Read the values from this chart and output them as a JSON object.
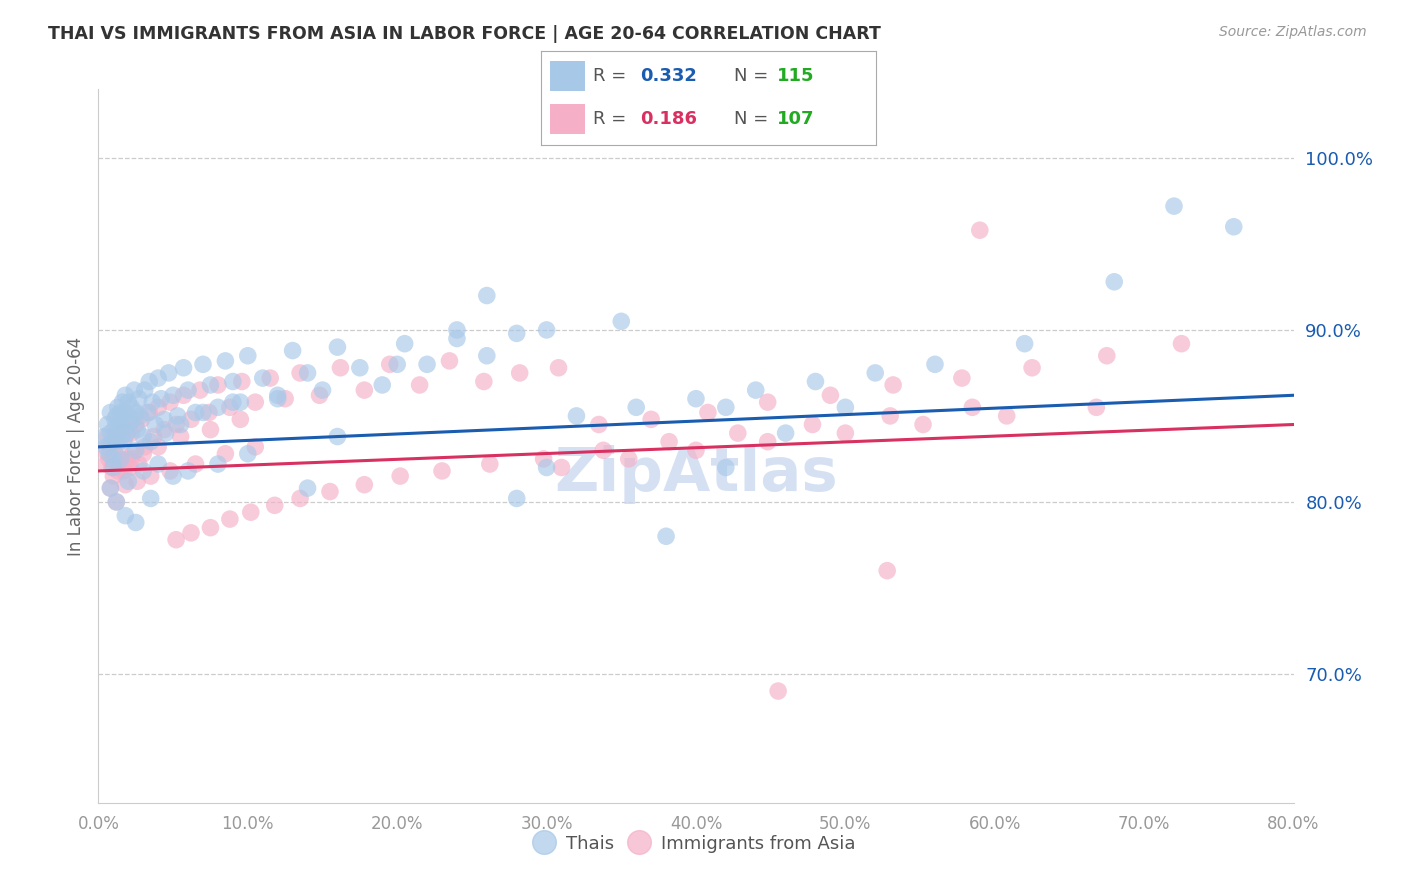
{
  "title": "THAI VS IMMIGRANTS FROM ASIA IN LABOR FORCE | AGE 20-64 CORRELATION CHART",
  "source": "Source: ZipAtlas.com",
  "ylabel": "In Labor Force | Age 20-64",
  "xmin": 0.0,
  "xmax": 0.8,
  "ymin": 0.625,
  "ymax": 1.04,
  "blue_R": 0.332,
  "blue_N": 115,
  "pink_R": 0.186,
  "pink_N": 107,
  "blue_color": "#a8c8e8",
  "pink_color": "#f5b0c8",
  "blue_line_color": "#1a5cb0",
  "pink_line_color": "#d83060",
  "legend_N_color": "#22aa22",
  "watermark_color": "#c8d8ef",
  "legend_label_blue": "Thais",
  "legend_label_pink": "Immigrants from Asia",
  "blue_line_y0": 0.832,
  "blue_line_y1": 0.862,
  "pink_line_y0": 0.818,
  "pink_line_y1": 0.845,
  "blue_x": [
    0.004,
    0.005,
    0.006,
    0.007,
    0.008,
    0.008,
    0.009,
    0.01,
    0.01,
    0.011,
    0.011,
    0.012,
    0.012,
    0.013,
    0.013,
    0.014,
    0.015,
    0.015,
    0.016,
    0.016,
    0.017,
    0.017,
    0.018,
    0.018,
    0.019,
    0.02,
    0.021,
    0.022,
    0.023,
    0.024,
    0.025,
    0.026,
    0.027,
    0.028,
    0.03,
    0.031,
    0.033,
    0.034,
    0.036,
    0.038,
    0.04,
    0.042,
    0.044,
    0.047,
    0.05,
    0.053,
    0.057,
    0.06,
    0.065,
    0.07,
    0.075,
    0.08,
    0.085,
    0.09,
    0.095,
    0.1,
    0.11,
    0.12,
    0.13,
    0.14,
    0.15,
    0.16,
    0.175,
    0.19,
    0.205,
    0.22,
    0.24,
    0.26,
    0.28,
    0.3,
    0.01,
    0.015,
    0.02,
    0.025,
    0.03,
    0.035,
    0.04,
    0.045,
    0.05,
    0.055,
    0.06,
    0.07,
    0.08,
    0.09,
    0.1,
    0.12,
    0.008,
    0.012,
    0.018,
    0.025,
    0.035,
    0.32,
    0.36,
    0.4,
    0.44,
    0.48,
    0.52,
    0.56,
    0.62,
    0.68,
    0.72,
    0.76,
    0.3,
    0.35,
    0.42,
    0.38,
    0.46,
    0.5,
    0.24,
    0.2,
    0.16,
    0.14,
    0.26,
    0.28,
    0.42
  ],
  "blue_y": [
    0.838,
    0.832,
    0.845,
    0.828,
    0.84,
    0.852,
    0.835,
    0.838,
    0.825,
    0.843,
    0.848,
    0.835,
    0.85,
    0.84,
    0.855,
    0.845,
    0.838,
    0.852,
    0.842,
    0.858,
    0.848,
    0.835,
    0.862,
    0.852,
    0.84,
    0.858,
    0.845,
    0.855,
    0.848,
    0.865,
    0.852,
    0.842,
    0.86,
    0.85,
    0.838,
    0.865,
    0.852,
    0.87,
    0.858,
    0.845,
    0.872,
    0.86,
    0.848,
    0.875,
    0.862,
    0.85,
    0.878,
    0.865,
    0.852,
    0.88,
    0.868,
    0.855,
    0.882,
    0.87,
    0.858,
    0.885,
    0.872,
    0.86,
    0.888,
    0.875,
    0.865,
    0.89,
    0.878,
    0.868,
    0.892,
    0.88,
    0.895,
    0.885,
    0.898,
    0.9,
    0.82,
    0.825,
    0.812,
    0.83,
    0.818,
    0.835,
    0.822,
    0.84,
    0.815,
    0.845,
    0.818,
    0.852,
    0.822,
    0.858,
    0.828,
    0.862,
    0.808,
    0.8,
    0.792,
    0.788,
    0.802,
    0.85,
    0.855,
    0.86,
    0.865,
    0.87,
    0.875,
    0.88,
    0.892,
    0.928,
    0.972,
    0.96,
    0.82,
    0.905,
    0.855,
    0.78,
    0.84,
    0.855,
    0.9,
    0.88,
    0.838,
    0.808,
    0.92,
    0.802,
    0.82
  ],
  "pink_x": [
    0.004,
    0.005,
    0.006,
    0.007,
    0.008,
    0.009,
    0.01,
    0.011,
    0.012,
    0.013,
    0.014,
    0.015,
    0.016,
    0.017,
    0.018,
    0.019,
    0.02,
    0.021,
    0.022,
    0.023,
    0.025,
    0.027,
    0.029,
    0.031,
    0.034,
    0.037,
    0.04,
    0.044,
    0.048,
    0.052,
    0.057,
    0.062,
    0.068,
    0.074,
    0.08,
    0.088,
    0.096,
    0.105,
    0.115,
    0.125,
    0.135,
    0.148,
    0.162,
    0.178,
    0.195,
    0.215,
    0.235,
    0.258,
    0.282,
    0.308,
    0.008,
    0.01,
    0.012,
    0.015,
    0.018,
    0.022,
    0.026,
    0.03,
    0.035,
    0.04,
    0.048,
    0.055,
    0.065,
    0.075,
    0.085,
    0.095,
    0.105,
    0.335,
    0.37,
    0.408,
    0.448,
    0.49,
    0.532,
    0.578,
    0.625,
    0.675,
    0.725,
    0.31,
    0.355,
    0.4,
    0.448,
    0.5,
    0.552,
    0.608,
    0.668,
    0.052,
    0.062,
    0.075,
    0.088,
    0.102,
    0.118,
    0.135,
    0.155,
    0.178,
    0.202,
    0.23,
    0.262,
    0.298,
    0.338,
    0.382,
    0.428,
    0.478,
    0.53,
    0.585,
    0.455,
    0.528,
    0.59
  ],
  "pink_y": [
    0.83,
    0.822,
    0.838,
    0.825,
    0.832,
    0.82,
    0.835,
    0.828,
    0.84,
    0.818,
    0.835,
    0.825,
    0.84,
    0.818,
    0.838,
    0.825,
    0.842,
    0.82,
    0.84,
    0.828,
    0.845,
    0.822,
    0.848,
    0.832,
    0.852,
    0.838,
    0.855,
    0.842,
    0.858,
    0.845,
    0.862,
    0.848,
    0.865,
    0.852,
    0.868,
    0.855,
    0.87,
    0.858,
    0.872,
    0.86,
    0.875,
    0.862,
    0.878,
    0.865,
    0.88,
    0.868,
    0.882,
    0.87,
    0.875,
    0.878,
    0.808,
    0.815,
    0.8,
    0.82,
    0.81,
    0.825,
    0.812,
    0.828,
    0.815,
    0.832,
    0.818,
    0.838,
    0.822,
    0.842,
    0.828,
    0.848,
    0.832,
    0.845,
    0.848,
    0.852,
    0.858,
    0.862,
    0.868,
    0.872,
    0.878,
    0.885,
    0.892,
    0.82,
    0.825,
    0.83,
    0.835,
    0.84,
    0.845,
    0.85,
    0.855,
    0.778,
    0.782,
    0.785,
    0.79,
    0.794,
    0.798,
    0.802,
    0.806,
    0.81,
    0.815,
    0.818,
    0.822,
    0.825,
    0.83,
    0.835,
    0.84,
    0.845,
    0.85,
    0.855,
    0.69,
    0.76,
    0.958
  ]
}
